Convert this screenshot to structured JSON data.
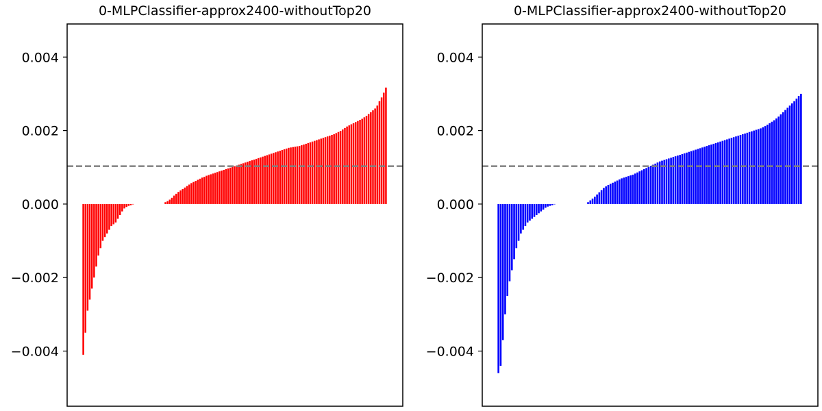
{
  "chart_data": [
    {
      "type": "bar",
      "title": "0-MLPClassifier-approx2400-withoutTop20",
      "xlabel": "",
      "ylabel": "",
      "ylim": [
        -0.0055,
        0.0049
      ],
      "yticks": [
        -0.004,
        -0.002,
        0.0,
        0.002,
        0.004
      ],
      "ytick_labels": [
        "−0.004",
        "−0.002",
        "0.000",
        "0.002",
        "0.004"
      ],
      "show_xticks": false,
      "grid": false,
      "color": "#ff0000",
      "reference_line": {
        "y": 0.00103,
        "style": "dashed",
        "color": "#808080"
      },
      "values": [
        -0.0041,
        -0.0035,
        -0.0029,
        -0.0026,
        -0.0023,
        -0.002,
        -0.0017,
        -0.0014,
        -0.0012,
        -0.001,
        -0.0009,
        -0.0008,
        -0.0007,
        -0.0006,
        -0.00055,
        -0.0005,
        -0.0004,
        -0.0003,
        -0.0002,
        -0.00012,
        -8e-05,
        -5e-05,
        -3e-05,
        -1e-05,
        0.0,
        0.0,
        0.0,
        0.0,
        0.0,
        0.0,
        0.0,
        0.0,
        0.0,
        0.0,
        0.0,
        0.0,
        0.0,
        0.0,
        5e-05,
        8e-05,
        0.00012,
        0.00017,
        0.00023,
        0.00028,
        0.00033,
        0.00037,
        0.00041,
        0.00045,
        0.00049,
        0.00053,
        0.00057,
        0.0006,
        0.00063,
        0.00066,
        0.00069,
        0.00072,
        0.00074,
        0.00077,
        0.00079,
        0.00081,
        0.00083,
        0.00085,
        0.00087,
        0.00089,
        0.00091,
        0.00093,
        0.00095,
        0.00097,
        0.00099,
        0.00101,
        0.00103,
        0.00105,
        0.00107,
        0.00109,
        0.00111,
        0.00113,
        0.00115,
        0.00117,
        0.00119,
        0.00121,
        0.00123,
        0.00125,
        0.00127,
        0.00129,
        0.00131,
        0.00133,
        0.00135,
        0.00137,
        0.00139,
        0.00141,
        0.00143,
        0.00145,
        0.00147,
        0.00149,
        0.00151,
        0.00153,
        0.00154,
        0.00155,
        0.00156,
        0.00157,
        0.00158,
        0.0016,
        0.00162,
        0.00164,
        0.00166,
        0.00168,
        0.0017,
        0.00172,
        0.00174,
        0.00176,
        0.00178,
        0.0018,
        0.00182,
        0.00184,
        0.00186,
        0.00188,
        0.0019,
        0.00193,
        0.00196,
        0.00199,
        0.00203,
        0.00207,
        0.00211,
        0.00214,
        0.00217,
        0.0022,
        0.00223,
        0.00226,
        0.00229,
        0.00232,
        0.00236,
        0.0024,
        0.00245,
        0.0025,
        0.00255,
        0.0026,
        0.00268,
        0.0028,
        0.0029,
        0.00303,
        0.00317
      ]
    },
    {
      "type": "bar",
      "title": "0-MLPClassifier-approx2400-withoutTop20",
      "xlabel": "",
      "ylabel": "",
      "ylim": [
        -0.0055,
        0.0049
      ],
      "yticks": [
        -0.004,
        -0.002,
        0.0,
        0.002,
        0.004
      ],
      "ytick_labels": [
        "−0.004",
        "−0.002",
        "0.000",
        "0.002",
        "0.004"
      ],
      "show_xticks": false,
      "grid": false,
      "color": "#0000ff",
      "reference_line": {
        "y": 0.00103,
        "style": "dashed",
        "color": "#808080"
      },
      "values": [
        -0.0046,
        -0.0044,
        -0.0037,
        -0.003,
        -0.0025,
        -0.0021,
        -0.0018,
        -0.0015,
        -0.0012,
        -0.001,
        -0.0008,
        -0.0007,
        -0.0006,
        -0.0005,
        -0.00045,
        -0.0004,
        -0.00035,
        -0.0003,
        -0.00025,
        -0.0002,
        -0.00015,
        -0.0001,
        -7e-05,
        -5e-05,
        -3e-05,
        -1e-05,
        0.0,
        0.0,
        0.0,
        0.0,
        0.0,
        0.0,
        0.0,
        0.0,
        0.0,
        0.0,
        0.0,
        0.0,
        0.0,
        0.0,
        5e-05,
        0.0001,
        0.00015,
        0.0002,
        0.00026,
        0.00032,
        0.00038,
        0.00044,
        0.00048,
        0.00052,
        0.00055,
        0.00058,
        0.00061,
        0.00064,
        0.00067,
        0.0007,
        0.00072,
        0.00074,
        0.00076,
        0.00078,
        0.0008,
        0.00083,
        0.00086,
        0.00089,
        0.00092,
        0.00095,
        0.00098,
        0.00101,
        0.00104,
        0.00107,
        0.0011,
        0.00113,
        0.00116,
        0.00118,
        0.0012,
        0.00122,
        0.00124,
        0.00126,
        0.00128,
        0.0013,
        0.00132,
        0.00134,
        0.00136,
        0.00138,
        0.0014,
        0.00142,
        0.00144,
        0.00146,
        0.00148,
        0.0015,
        0.00152,
        0.00154,
        0.00156,
        0.00158,
        0.0016,
        0.00162,
        0.00164,
        0.00166,
        0.00168,
        0.0017,
        0.00172,
        0.00174,
        0.00176,
        0.00178,
        0.0018,
        0.00182,
        0.00184,
        0.00186,
        0.00188,
        0.0019,
        0.00192,
        0.00194,
        0.00196,
        0.00198,
        0.002,
        0.00202,
        0.00204,
        0.00206,
        0.00209,
        0.00212,
        0.00216,
        0.0022,
        0.00224,
        0.00228,
        0.00233,
        0.00238,
        0.00244,
        0.0025,
        0.00256,
        0.00262,
        0.00268,
        0.00274,
        0.0028,
        0.00287,
        0.00294,
        0.003
      ]
    }
  ]
}
